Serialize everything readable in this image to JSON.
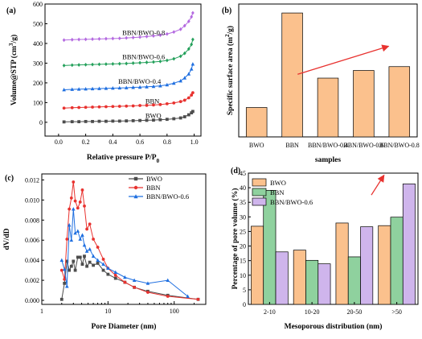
{
  "colors": {
    "BWO": "#4d4d4d",
    "BBN": "#e8322f",
    "BBN_BWO_0.4": "#1f6fe0",
    "BBN_BWO_0.6": "#23a05a",
    "BBN_BWO_0.8": "#b46ae0",
    "bar_orange": "#fbc18d",
    "bar_green": "#8fd19e",
    "bar_purple": "#cfb5ec",
    "arrow": "#e8322f"
  },
  "chart_data": [
    {
      "id": "a",
      "panel_label": "(a)",
      "type": "line",
      "xlabel": "Relative pressure P/P",
      "xlabel_sub": "0",
      "ylabel": "Volume@STP (cm",
      "ylabel_sup": "3",
      "ylabel_end": "/g)",
      "xlim": [
        -0.1,
        1.05
      ],
      "ylim": [
        -70,
        600
      ],
      "xticks": [
        0.0,
        0.2,
        0.4,
        0.6,
        0.8,
        1.0
      ],
      "xtick_labels": [
        "0.0",
        "0.2",
        "0.4",
        "0.6",
        "0.8",
        "1.0"
      ],
      "yticks": [
        0,
        100,
        200,
        300,
        400,
        500,
        600
      ],
      "ytick_labels": [
        "0",
        "100",
        "200",
        "300",
        "400",
        "500",
        "600"
      ],
      "series": [
        {
          "name": "BWO",
          "color_key": "BWO",
          "marker": "square",
          "x": [
            0.04,
            0.1,
            0.15,
            0.2,
            0.25,
            0.3,
            0.35,
            0.4,
            0.45,
            0.5,
            0.55,
            0.6,
            0.65,
            0.7,
            0.75,
            0.8,
            0.85,
            0.9,
            0.93,
            0.96,
            0.98,
            0.99
          ],
          "y": [
            2,
            3,
            3,
            4,
            4,
            5,
            5,
            6,
            6,
            7,
            8,
            9,
            10,
            11,
            13,
            15,
            18,
            22,
            28,
            38,
            48,
            55
          ]
        },
        {
          "name": "BBN",
          "color_key": "BBN",
          "marker": "circle",
          "x": [
            0.04,
            0.1,
            0.15,
            0.2,
            0.25,
            0.3,
            0.35,
            0.4,
            0.45,
            0.5,
            0.55,
            0.6,
            0.65,
            0.7,
            0.75,
            0.8,
            0.85,
            0.9,
            0.93,
            0.96,
            0.98,
            0.99
          ],
          "y": [
            72,
            74,
            75,
            76,
            77,
            78,
            79,
            80,
            81,
            82,
            83,
            85,
            86,
            88,
            90,
            94,
            98,
            105,
            112,
            124,
            138,
            150
          ]
        },
        {
          "name": "BBN/BWO-0.4",
          "color_key": "BBN_BWO_0.4",
          "marker": "triangle",
          "x": [
            0.04,
            0.1,
            0.15,
            0.2,
            0.25,
            0.3,
            0.35,
            0.4,
            0.45,
            0.5,
            0.55,
            0.6,
            0.65,
            0.7,
            0.75,
            0.8,
            0.85,
            0.9,
            0.93,
            0.96,
            0.98,
            0.99
          ],
          "y": [
            165,
            167,
            168,
            169,
            170,
            171,
            172,
            173,
            174,
            175,
            177,
            178,
            180,
            182,
            185,
            190,
            198,
            210,
            225,
            245,
            270,
            295
          ]
        },
        {
          "name": "BBN/BWO-0.6",
          "color_key": "BBN_BWO_0.6",
          "marker": "diamond",
          "x": [
            0.04,
            0.1,
            0.15,
            0.2,
            0.25,
            0.3,
            0.35,
            0.4,
            0.45,
            0.5,
            0.55,
            0.6,
            0.65,
            0.7,
            0.75,
            0.8,
            0.85,
            0.9,
            0.93,
            0.96,
            0.98,
            0.99
          ],
          "y": [
            288,
            290,
            291,
            292,
            293,
            294,
            295,
            296,
            297,
            298,
            300,
            302,
            304,
            306,
            309,
            314,
            322,
            335,
            350,
            372,
            395,
            420
          ]
        },
        {
          "name": "BBN/BWO-0.8",
          "color_key": "BBN_BWO_0.8",
          "marker": "diamond",
          "x": [
            0.04,
            0.1,
            0.15,
            0.2,
            0.25,
            0.3,
            0.35,
            0.4,
            0.45,
            0.5,
            0.55,
            0.6,
            0.65,
            0.7,
            0.75,
            0.8,
            0.85,
            0.9,
            0.93,
            0.96,
            0.98,
            0.99
          ],
          "y": [
            417,
            419,
            420,
            421,
            422,
            423,
            424,
            425,
            426,
            428,
            430,
            432,
            435,
            438,
            442,
            448,
            458,
            472,
            490,
            512,
            535,
            555
          ]
        }
      ],
      "annotations": [
        {
          "text": "BBN/BWO-0.8",
          "x": 0.47,
          "y": 442
        },
        {
          "text": "BBN/BWO-0.6",
          "x": 0.47,
          "y": 320
        },
        {
          "text": "BBN/BWO-0.4",
          "x": 0.44,
          "y": 196
        },
        {
          "text": "BBN",
          "x": 0.64,
          "y": 96
        },
        {
          "text": "BWO",
          "x": 0.64,
          "y": 22
        }
      ]
    },
    {
      "id": "b",
      "panel_label": "(b)",
      "type": "bar",
      "xlabel": "samples",
      "ylabel": "Specific surface area (m",
      "ylabel_sup": "2",
      "ylabel_end": "/g)",
      "categories": [
        "BWO",
        "BBN",
        "BBN/BWO-0.4",
        "BBN/BWO-0.6",
        "BBN/BWO-0.8"
      ],
      "values": [
        11.5,
        48.5,
        23.0,
        26.0,
        27.5
      ],
      "ylim": [
        0,
        52
      ],
      "color_key": "bar_orange",
      "arrow": {
        "from": [
          1.65,
          24.5
        ],
        "to": [
          4.2,
          35.5
        ]
      }
    },
    {
      "id": "c",
      "panel_label": "(c)",
      "type": "line",
      "xscale": "log",
      "xlabel": "Pore Diameter (nm)",
      "ylabel": "dV/dD",
      "xlim": [
        1,
        300
      ],
      "ylim": [
        -0.0004,
        0.0126
      ],
      "xticks": [
        1,
        10,
        100
      ],
      "xtick_labels": [
        "1",
        "10",
        "100"
      ],
      "yticks": [
        0.0,
        0.002,
        0.004,
        0.006,
        0.008,
        0.01,
        0.012
      ],
      "ytick_labels": [
        "0.000",
        "0.002",
        "0.004",
        "0.006",
        "0.008",
        "0.010",
        "0.012"
      ],
      "legend": "top-right",
      "series": [
        {
          "name": "BWO",
          "color_key": "BWO",
          "marker": "square",
          "x": [
            2.0,
            2.2,
            2.4,
            2.6,
            2.8,
            3.0,
            3.2,
            3.5,
            3.8,
            4.1,
            4.4,
            4.8,
            5.3,
            6.0,
            7.0,
            8.5,
            10,
            13,
            18,
            25,
            40,
            80,
            230
          ],
          "y": [
            0.0001,
            0.0017,
            0.0039,
            0.003,
            0.0034,
            0.0039,
            0.003,
            0.0043,
            0.0043,
            0.0036,
            0.0044,
            0.0034,
            0.0038,
            0.0035,
            0.0037,
            0.003,
            0.0026,
            0.0022,
            0.0018,
            0.0013,
            0.0009,
            0.0005,
            0.0001
          ]
        },
        {
          "name": "BBN",
          "color_key": "BBN",
          "marker": "circle",
          "x": [
            2.0,
            2.2,
            2.4,
            2.6,
            2.8,
            3.0,
            3.2,
            3.5,
            3.8,
            4.1,
            4.4,
            4.8,
            5.3,
            6.0,
            7.0,
            8.5,
            10,
            13,
            18,
            25,
            40,
            80,
            230
          ],
          "y": [
            0.003,
            0.0021,
            0.0061,
            0.0091,
            0.0102,
            0.0118,
            0.0099,
            0.0092,
            0.0098,
            0.011,
            0.0094,
            0.0071,
            0.0076,
            0.0061,
            0.0053,
            0.0041,
            0.0032,
            0.0025,
            0.0018,
            0.0013,
            0.0008,
            0.0004,
            0.0001
          ]
        },
        {
          "name": "BBN/BWO-0.6",
          "color_key": "BBN_BWO_0.6",
          "legend_color_key": "BBN_BWO_0.4",
          "marker": "triangle",
          "x": [
            2.0,
            2.2,
            2.4,
            2.6,
            2.8,
            3.0,
            3.2,
            3.5,
            3.8,
            4.1,
            4.4,
            4.8,
            5.3,
            6.0,
            7.0,
            8.5,
            10,
            13,
            18,
            25,
            40,
            80,
            160
          ],
          "y": [
            0.004,
            0.0031,
            0.0014,
            0.0075,
            0.006,
            0.0091,
            0.0067,
            0.0069,
            0.0061,
            0.0065,
            0.0055,
            0.0049,
            0.0051,
            0.0044,
            0.004,
            0.0036,
            0.0032,
            0.0028,
            0.0023,
            0.002,
            0.0017,
            0.002,
            0.0004
          ]
        }
      ]
    },
    {
      "id": "d",
      "panel_label": "(d)",
      "type": "bar",
      "xlabel": "Mesoporous distribution (nm)",
      "ylabel": "Percentage of pore volume (%)",
      "categories": [
        "2-10",
        "10-20",
        "20-50",
        ">50"
      ],
      "ylim": [
        0,
        45
      ],
      "yticks": [
        0,
        5,
        10,
        15,
        20,
        25,
        30,
        35,
        40,
        45
      ],
      "legend": "top-left",
      "series": [
        {
          "name": "BWO",
          "color_key": "bar_orange",
          "values": [
            26.8,
            18.6,
            27.9,
            27.0
          ]
        },
        {
          "name": "BBN",
          "color_key": "bar_green",
          "values": [
            39.1,
            15.1,
            16.3,
            29.9
          ]
        },
        {
          "name": "BBN/BWO-0.6",
          "color_key": "bar_purple",
          "values": [
            18.0,
            13.9,
            26.6,
            41.3
          ]
        }
      ],
      "arrow": {
        "from": [
          2.9,
          37.5
        ],
        "to": [
          3.2,
          44.3
        ]
      }
    }
  ]
}
